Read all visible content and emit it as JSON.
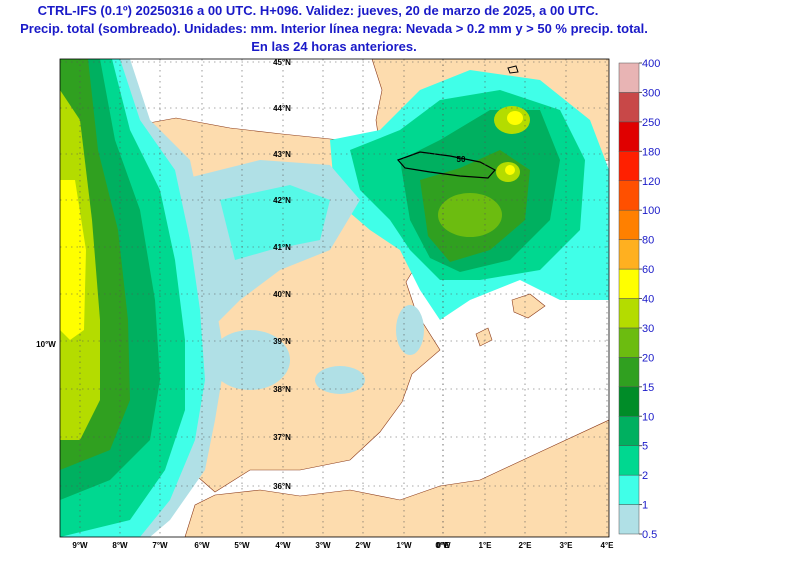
{
  "header": {
    "title_lines": [
      "CTRL-IFS (0.1º) 20250316 a 00 UTC. H+096. Validez: jueves, 20 de marzo de 2025, a 00 UTC.",
      "Precip. total (sombreado). Unidades: mm. Interior línea negra: Nevada > 0.2 mm y > 50 % precip. total.",
      "En las 24 horas anteriores."
    ]
  },
  "map": {
    "lat_labels": [
      "45°N",
      "44°N",
      "43°N",
      "42°N",
      "41°N",
      "40°N",
      "39°N",
      "38°N",
      "37°N",
      "36°N",
      "10°W"
    ],
    "lon_labels": [
      "9°W",
      "8°W",
      "7°W",
      "6°W",
      "5°W",
      "4°W",
      "3°W",
      "2°W",
      "1°W",
      "0°W",
      "0°E",
      "1°E",
      "2°E",
      "3°E",
      "4°E"
    ],
    "contour_label": "50"
  },
  "colorbar": {
    "levels": [
      0.5,
      1,
      2,
      5,
      10,
      15,
      20,
      30,
      40,
      60,
      80,
      100,
      120,
      180,
      250,
      300,
      400
    ],
    "colors": [
      "#b0e0e6",
      "#40ffe8",
      "#00d890",
      "#00b060",
      "#008c28",
      "#30a020",
      "#6cbc10",
      "#b4dc00",
      "#ffff00",
      "#ffb020",
      "#ff8000",
      "#ff5000",
      "#ff2000",
      "#e00000",
      "#c84848",
      "#e8b4b4"
    ]
  }
}
